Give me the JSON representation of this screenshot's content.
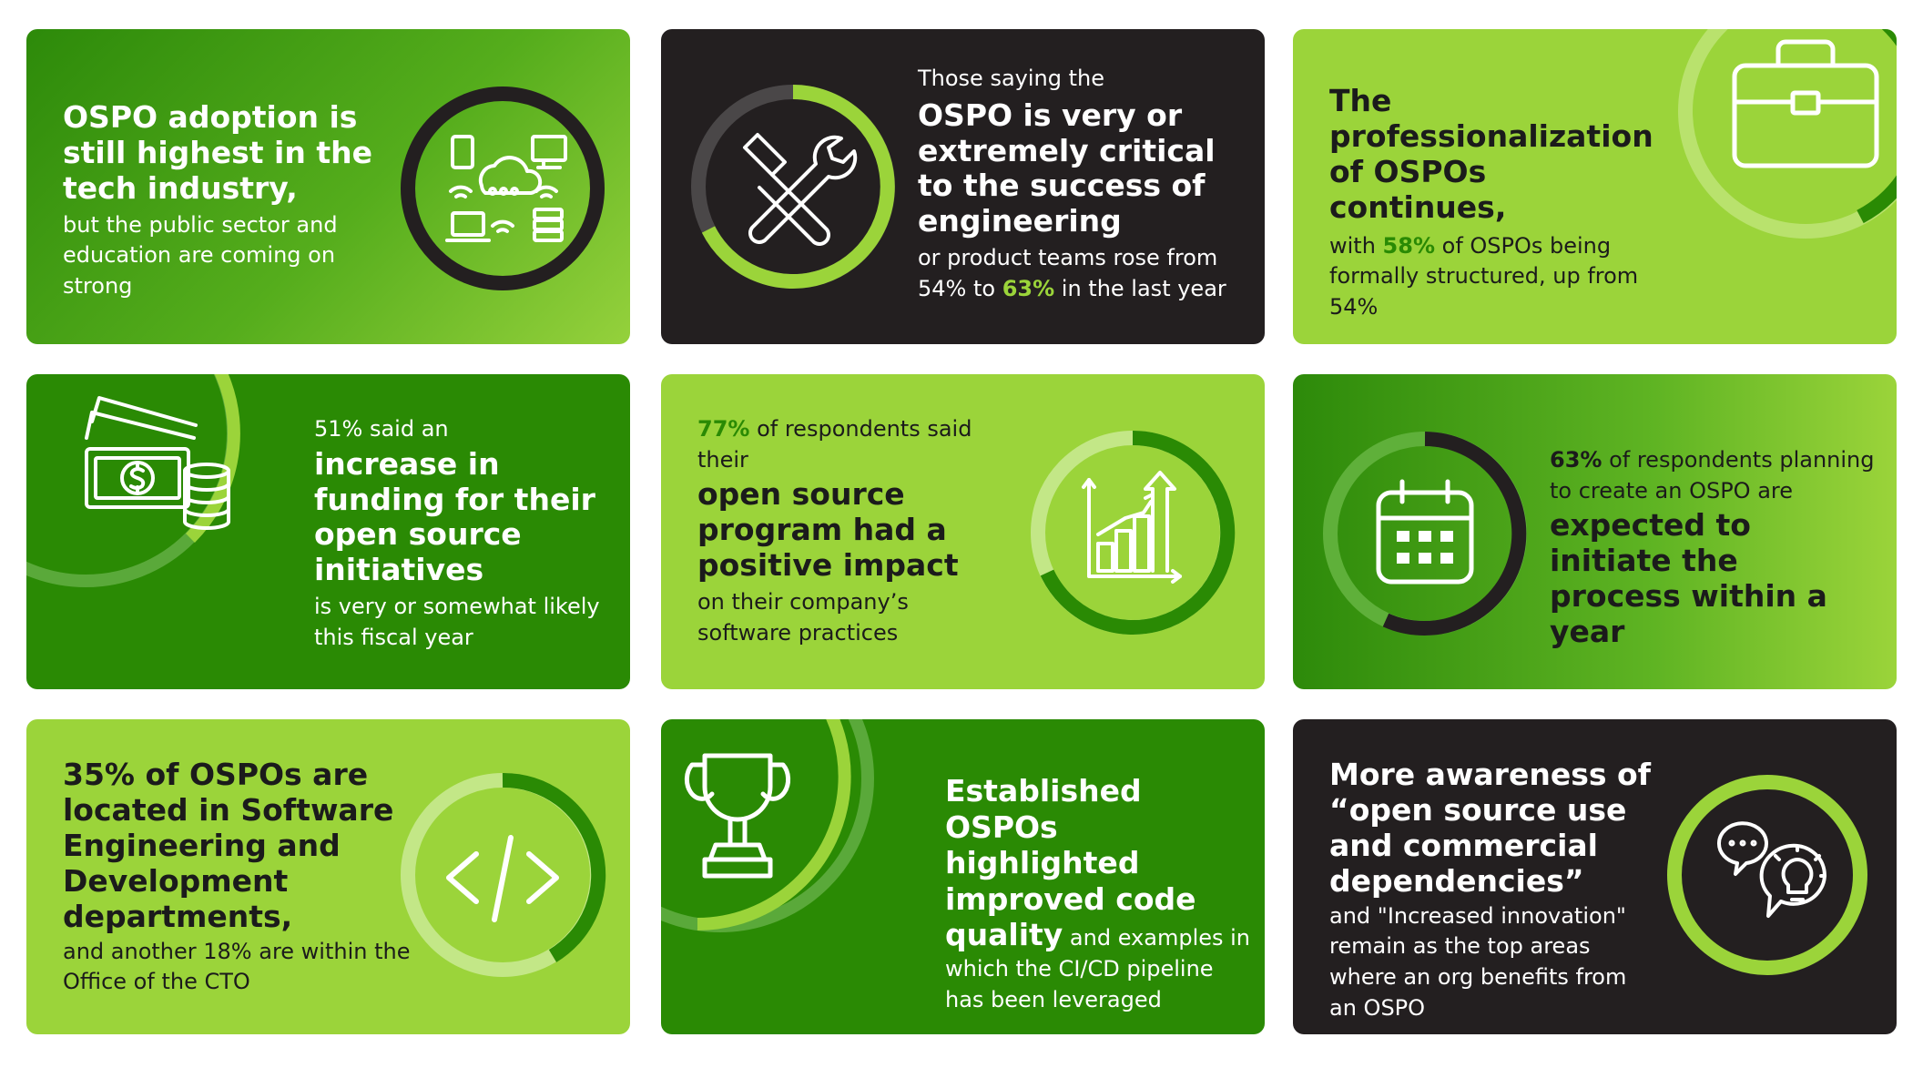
{
  "colors": {
    "dark_green": "#2a8a04",
    "lime": "#9bd43a",
    "dark": "#231f20",
    "white": "#ffffff"
  },
  "cards": [
    {
      "heading": "OSPO adoption is still highest in the tech industry,",
      "body": "but the public sector and education are coming on strong",
      "icon": "cloud-devices-icon"
    },
    {
      "intro": "Those saying the",
      "heading": "OSPO is very or extremely critical to the success of engineering",
      "body_before": "or product teams rose from 54% to ",
      "highlight": "63%",
      "body_after": " in the last year",
      "icon": "tools-icon"
    },
    {
      "heading": "The professionalization of OSPOs continues,",
      "body_before": "with ",
      "highlight": "58%",
      "body_after": " of OSPOs being formally structured, up from 54%",
      "icon": "briefcase-icon"
    },
    {
      "intro": "51% said an",
      "heading": "increase in funding for their open source initiatives",
      "body": "is very or somewhat likely this fiscal year",
      "icon": "money-icon"
    },
    {
      "highlight": "77%",
      "intro_after": " of respondents said their",
      "heading": "open source program had a positive impact",
      "body": "on their company’s software practices",
      "icon": "growth-chart-icon"
    },
    {
      "highlight": "63%",
      "intro_after": " of respondents planning to create an OSPO are",
      "heading": "expected to initiate the process within a year",
      "icon": "calendar-icon"
    },
    {
      "heading": "35% of OSPOs are located in Software Engineering and Development departments,",
      "body": "and another 18% are within the Office of the CTO",
      "icon": "code-icon"
    },
    {
      "heading": "Established OSPOs highlighted improved code quality",
      "body": " and examples in which the CI/CD pipeline has been leveraged",
      "icon": "trophy-icon"
    },
    {
      "heading": "More awareness of “open source use and commercial dependencies”",
      "body": "and \"Increased innovation\" remain as the top areas where an org benefits from an OSPO",
      "icon": "idea-chat-icon"
    }
  ]
}
